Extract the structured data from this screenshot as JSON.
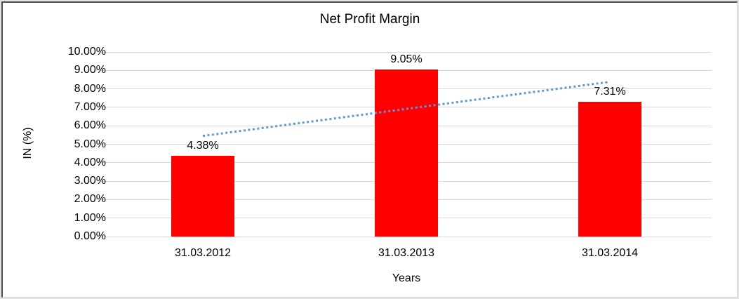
{
  "chart_data": {
    "type": "bar",
    "title": "Net Profit Margin",
    "xlabel": "Years",
    "ylabel": "IN (%)",
    "categories": [
      "31.03.2012",
      "31.03.2013",
      "31.03.2014"
    ],
    "values": [
      4.38,
      9.05,
      7.31
    ],
    "data_labels": [
      "4.38%",
      "9.05%",
      "7.31%"
    ],
    "ylim": [
      0,
      10
    ],
    "yticks": [
      "0.00%",
      "1.00%",
      "2.00%",
      "3.00%",
      "4.00%",
      "5.00%",
      "6.00%",
      "7.00%",
      "8.00%",
      "9.00%",
      "10.00%"
    ],
    "grid": true,
    "legend": "none",
    "bar_color": "#ff0000",
    "gridline_color": "#d9d9d9",
    "trendline": {
      "type": "linear",
      "style": "dotted",
      "color": "#5b9bd5",
      "start_value": 5.45,
      "end_value": 8.38
    }
  }
}
